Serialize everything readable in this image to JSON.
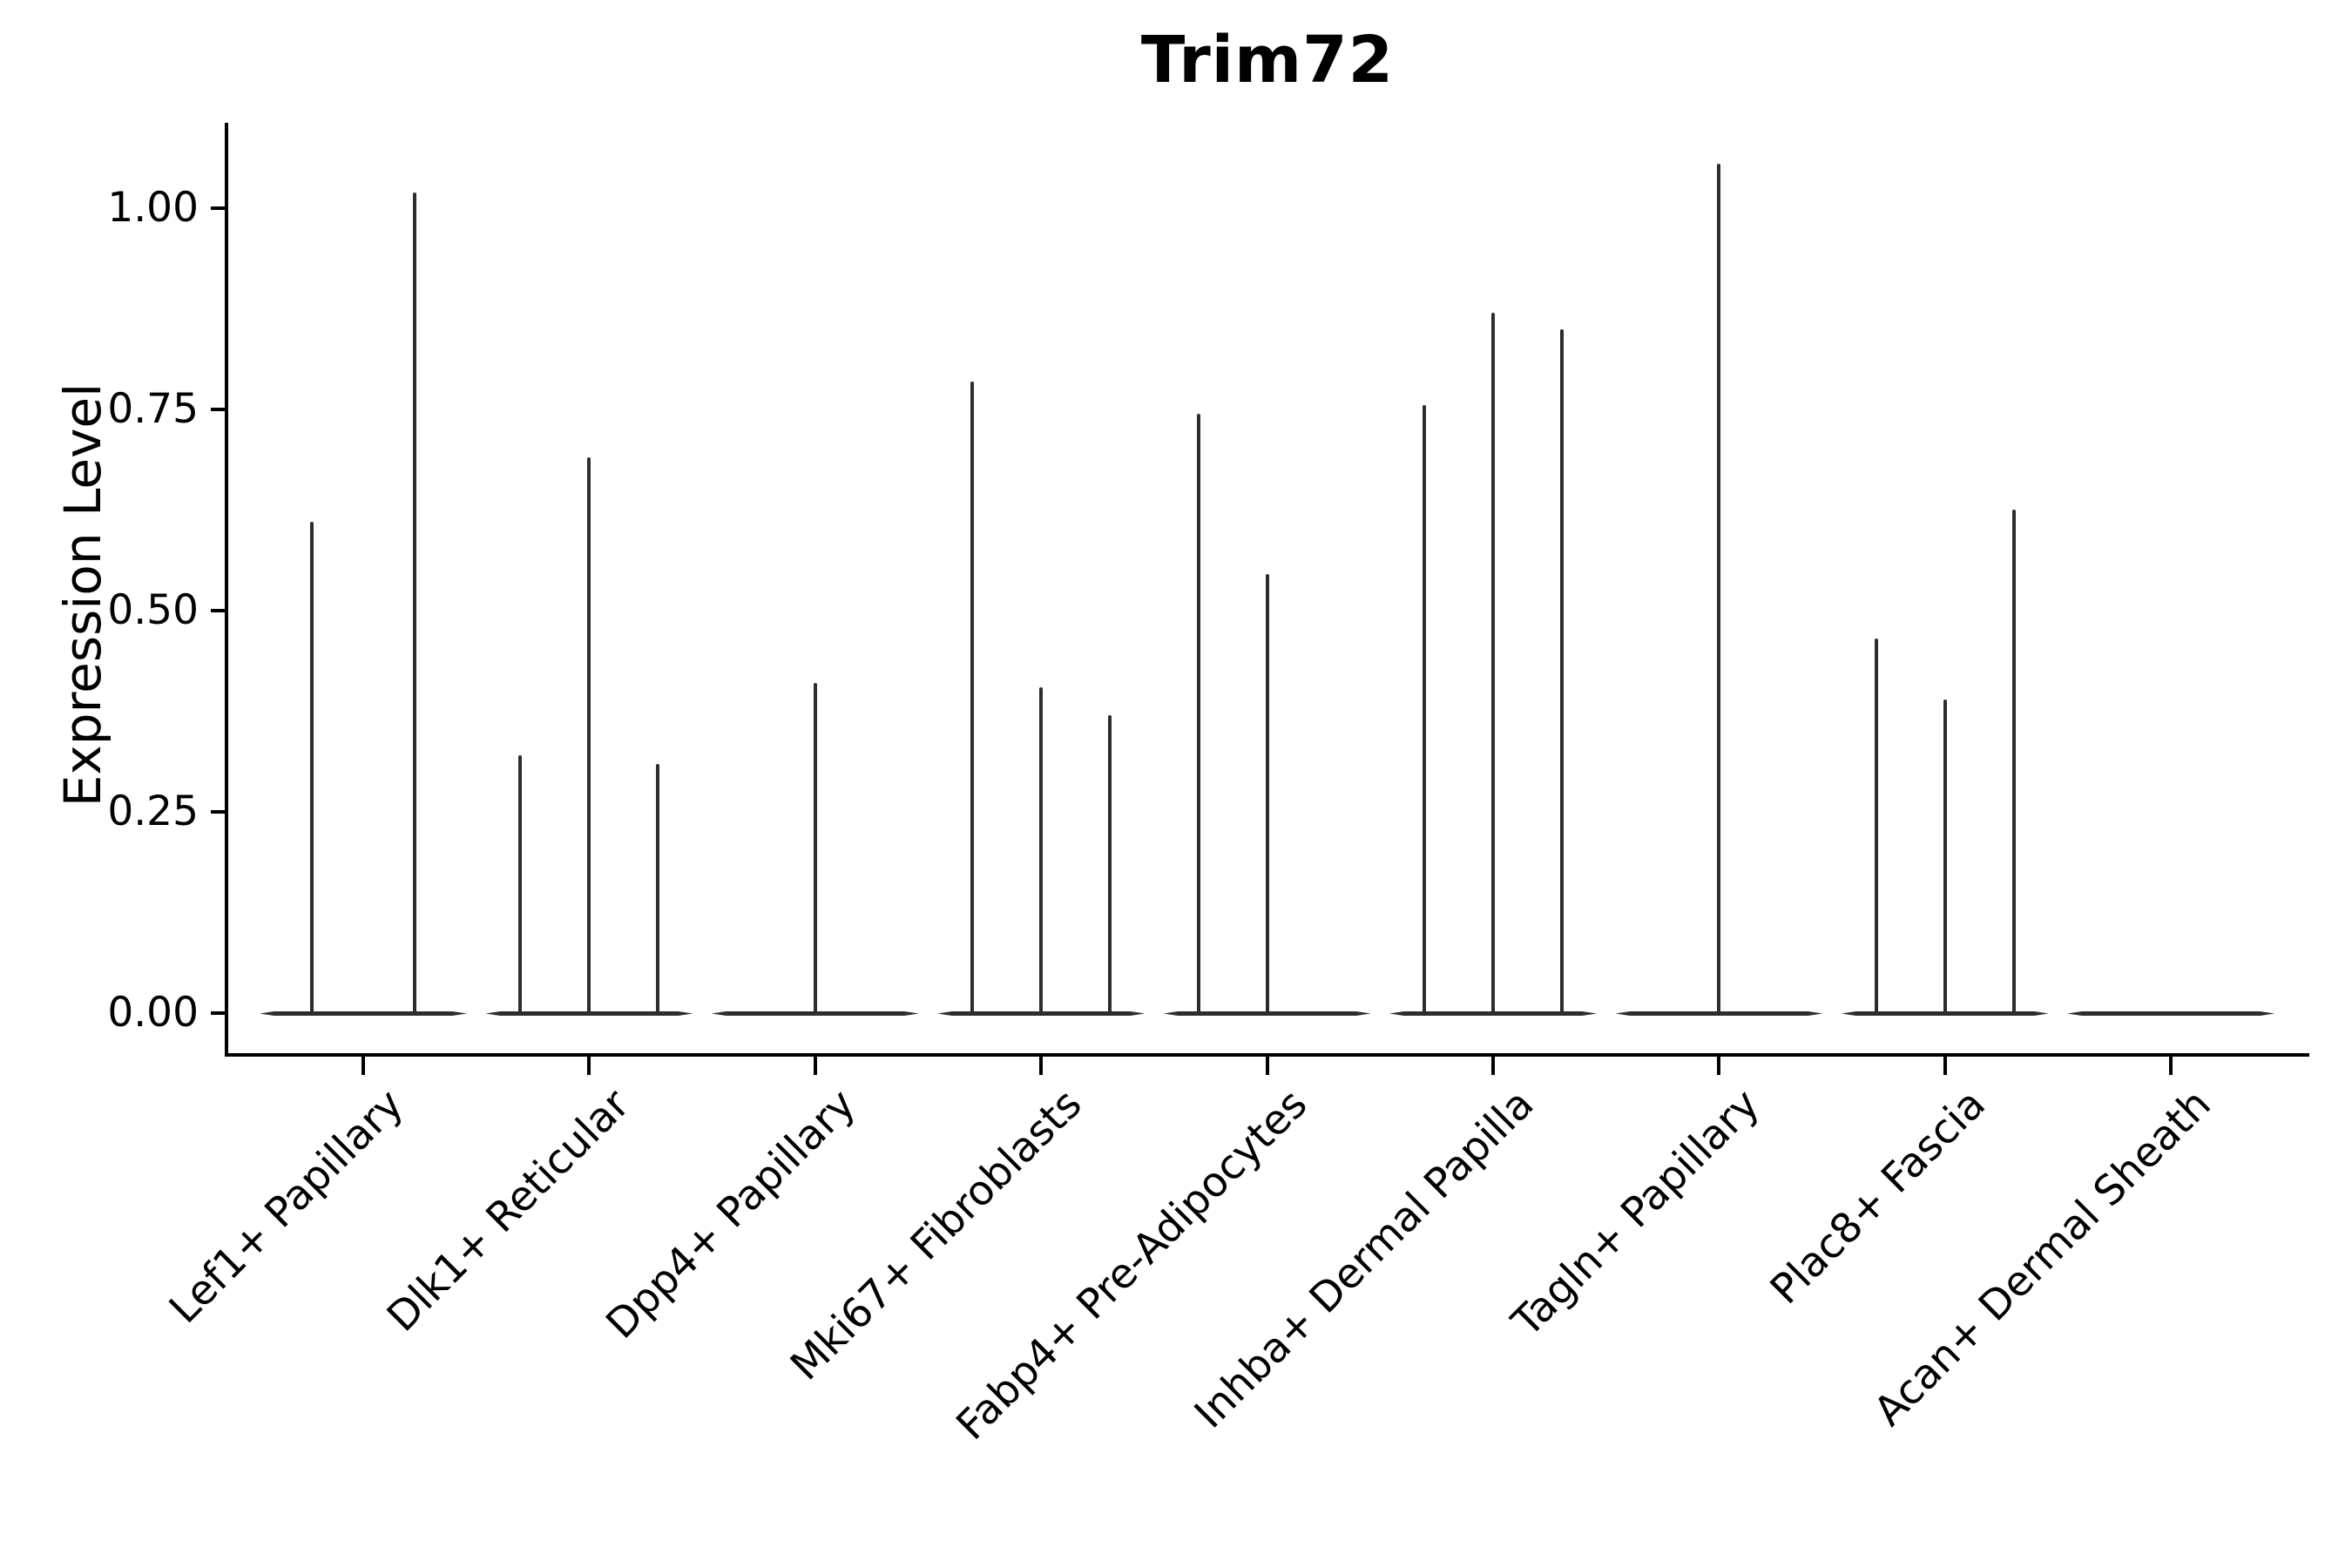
{
  "chart_data": {
    "type": "violin",
    "title": "Trim72",
    "xlabel": "",
    "ylabel": "Expression Level",
    "ylim": [
      0,
      1.1
    ],
    "grid": false,
    "legend": "none",
    "colors": {
      "violin": "#2d2d2d",
      "axis": "#000000",
      "background": "#ffffff"
    },
    "yticks": [
      {
        "label": "1.00",
        "value": 1.0
      },
      {
        "label": "0.75",
        "value": 0.75
      },
      {
        "label": "0.50",
        "value": 0.5
      },
      {
        "label": "0.25",
        "value": 0.25
      },
      {
        "label": "0.00",
        "value": 0.0
      }
    ],
    "note": "Grouped violin plot; violins are near-zero-width spikes rising from flat bodies at expression 0. 'peak' = top of each spike in Expression Level units; 'slot' = sub-violin position offset within the group (px).",
    "groups": [
      {
        "label": "Lef1+ Papillary",
        "violins": [
          {
            "slot": -59,
            "peak": 0.61
          },
          {
            "slot": 59,
            "peak": 1.02
          }
        ]
      },
      {
        "label": "Dlk1+ Reticular",
        "violins": [
          {
            "slot": -79,
            "peak": 0.32
          },
          {
            "slot": 0,
            "peak": 0.69
          },
          {
            "slot": 79,
            "peak": 0.31
          }
        ]
      },
      {
        "label": "Dpp4+ Papillary",
        "violins": [
          {
            "slot": 0,
            "peak": 0.41
          }
        ]
      },
      {
        "label": "Mki67+ Fibroblasts",
        "violins": [
          {
            "slot": -79,
            "peak": 0.785
          },
          {
            "slot": 0,
            "peak": 0.405
          },
          {
            "slot": 79,
            "peak": 0.37
          }
        ]
      },
      {
        "label": "Fabp4+ Pre-Adipocytes",
        "violins": [
          {
            "slot": -79,
            "peak": 0.745
          },
          {
            "slot": 0,
            "peak": 0.545
          }
        ]
      },
      {
        "label": "Inhba+ Dermal Papilla",
        "violins": [
          {
            "slot": -79,
            "peak": 0.755
          },
          {
            "slot": 0,
            "peak": 0.87
          },
          {
            "slot": 79,
            "peak": 0.85
          }
        ]
      },
      {
        "label": "Tagln+ Papillary",
        "violins": [
          {
            "slot": 0,
            "peak": 1.055
          }
        ]
      },
      {
        "label": "Plac8+ Fascia",
        "violins": [
          {
            "slot": -79,
            "peak": 0.465
          },
          {
            "slot": 0,
            "peak": 0.39
          },
          {
            "slot": 79,
            "peak": 0.625
          }
        ]
      },
      {
        "label": "Acan+ Dermal Sheath",
        "violins": []
      }
    ]
  }
}
